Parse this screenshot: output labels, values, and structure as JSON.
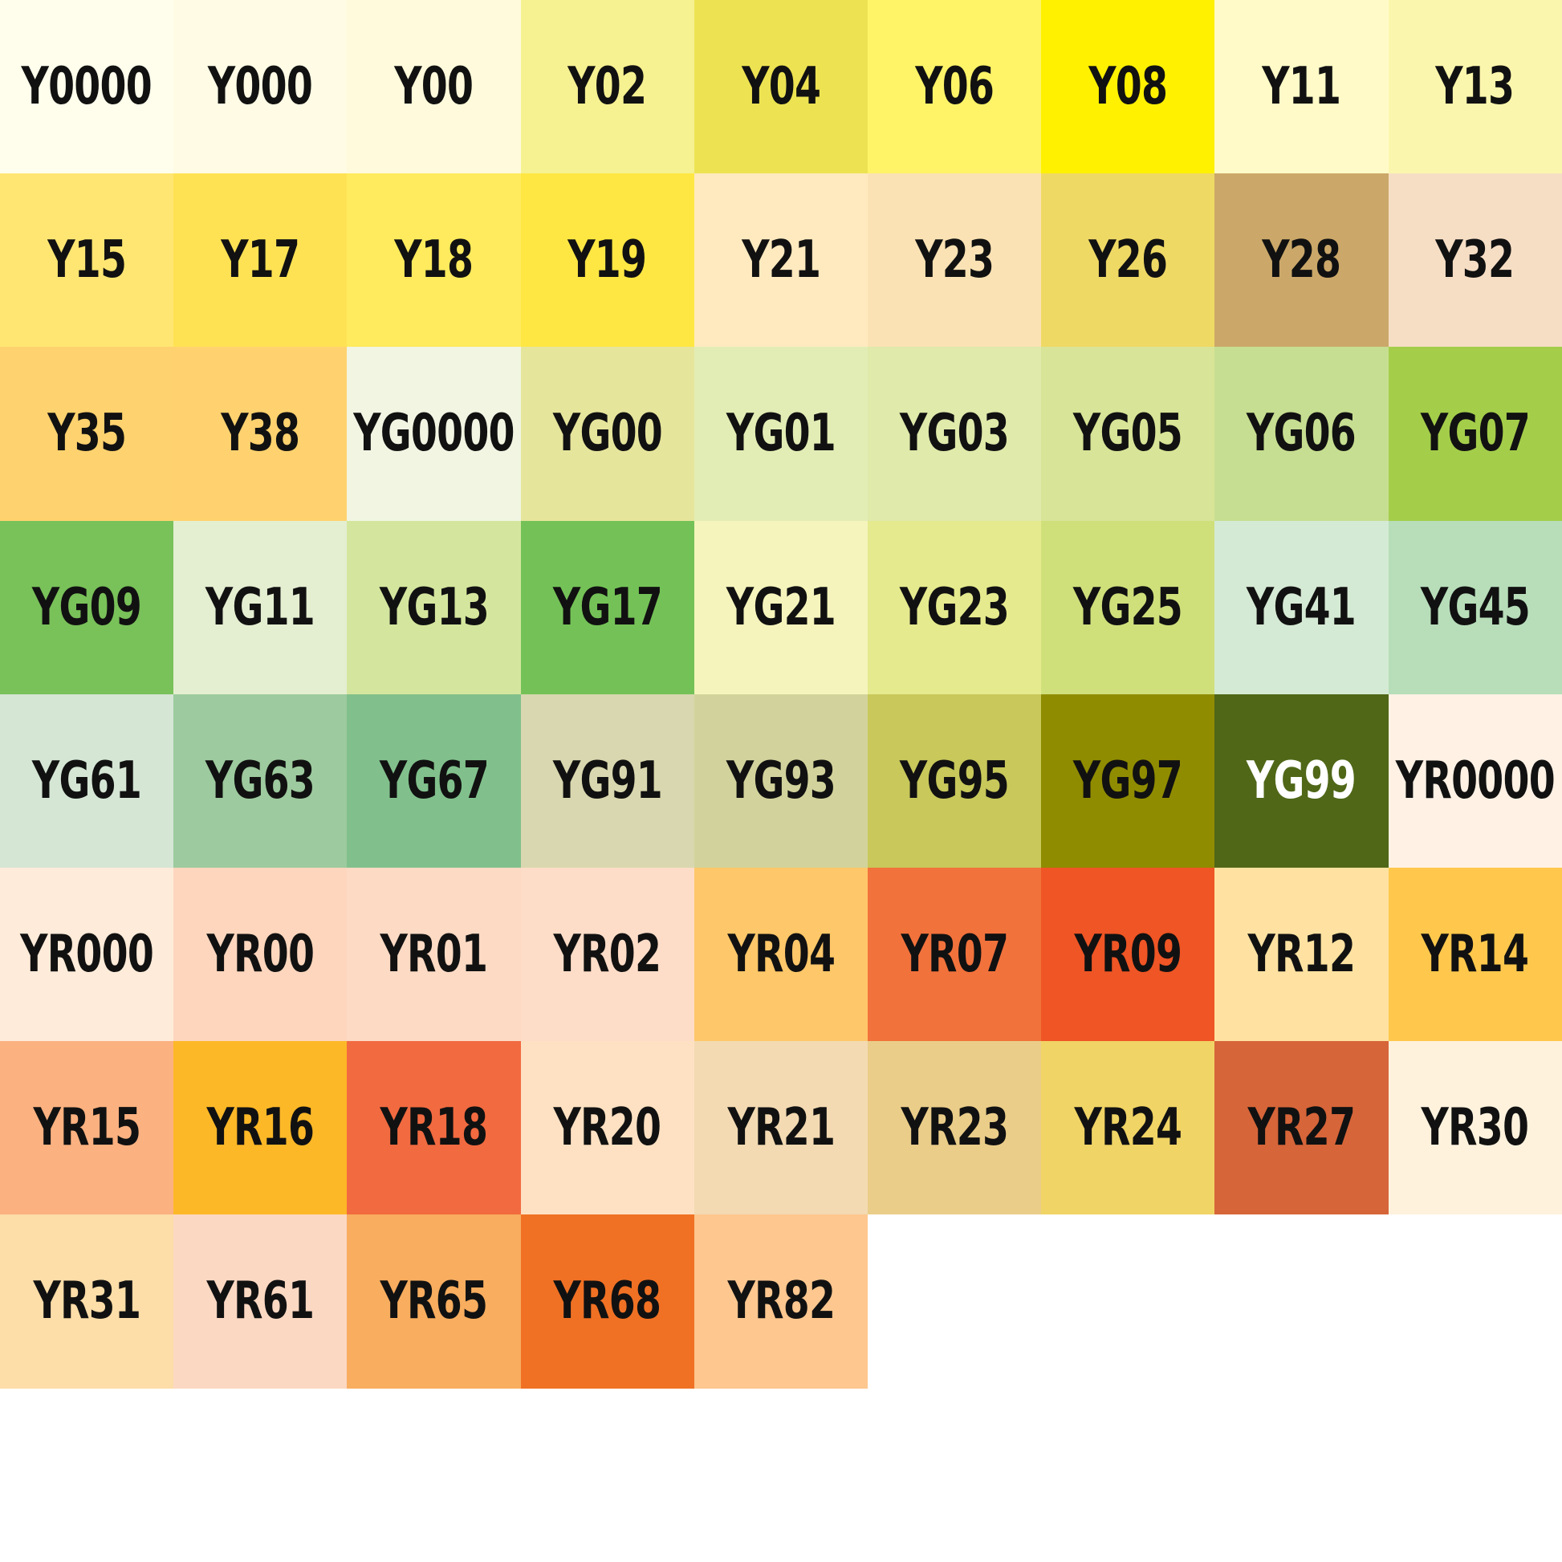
{
  "swatches": [
    {
      "code": "Y0000",
      "color": "#FFFEEC",
      "text_color": "#111111"
    },
    {
      "code": "Y000",
      "color": "#FFFBE5",
      "text_color": "#111111"
    },
    {
      "code": "Y00",
      "color": "#FFFADB",
      "text_color": "#111111"
    },
    {
      "code": "Y02",
      "color": "#F6F191",
      "text_color": "#111111"
    },
    {
      "code": "Y04",
      "color": "#EDE352",
      "text_color": "#111111"
    },
    {
      "code": "Y06",
      "color": "#FFF468",
      "text_color": "#111111"
    },
    {
      "code": "Y08",
      "color": "#FFF100",
      "text_color": "#111111"
    },
    {
      "code": "Y11",
      "color": "#FFFAC7",
      "text_color": "#111111"
    },
    {
      "code": "Y13",
      "color": "#FBF6AD",
      "text_color": "#111111"
    },
    {
      "code": "Y15",
      "color": "#FFE672",
      "text_color": "#111111"
    },
    {
      "code": "Y17",
      "color": "#FFE253",
      "text_color": "#111111"
    },
    {
      "code": "Y18",
      "color": "#FFEB5D",
      "text_color": "#111111"
    },
    {
      "code": "Y19",
      "color": "#FFE743",
      "text_color": "#111111"
    },
    {
      "code": "Y21",
      "color": "#FFEABF",
      "text_color": "#111111"
    },
    {
      "code": "Y23",
      "color": "#FAE2B4",
      "text_color": "#111111"
    },
    {
      "code": "Y26",
      "color": "#EFD965",
      "text_color": "#111111"
    },
    {
      "code": "Y28",
      "color": "#CBA869",
      "text_color": "#111111"
    },
    {
      "code": "Y32",
      "color": "#F6DEC5",
      "text_color": "#111111"
    },
    {
      "code": "Y35",
      "color": "#FED26E",
      "text_color": "#111111"
    },
    {
      "code": "Y38",
      "color": "#FFD26F",
      "text_color": "#111111"
    },
    {
      "code": "YG0000",
      "color": "#F1F5E2",
      "text_color": "#111111"
    },
    {
      "code": "YG00",
      "color": "#E6E59C",
      "text_color": "#111111"
    },
    {
      "code": "YG01",
      "color": "#E2EDB5",
      "text_color": "#111111"
    },
    {
      "code": "YG03",
      "color": "#DFEAAB",
      "text_color": "#111111"
    },
    {
      "code": "YG05",
      "color": "#D8E497",
      "text_color": "#111111"
    },
    {
      "code": "YG06",
      "color": "#C6DE91",
      "text_color": "#111111"
    },
    {
      "code": "YG07",
      "color": "#A4CE4A",
      "text_color": "#111111"
    },
    {
      "code": "YG09",
      "color": "#79C159",
      "text_color": "#111111"
    },
    {
      "code": "YG11",
      "color": "#E4EED1",
      "text_color": "#111111"
    },
    {
      "code": "YG13",
      "color": "#D4E69E",
      "text_color": "#111111"
    },
    {
      "code": "YG17",
      "color": "#74C257",
      "text_color": "#111111"
    },
    {
      "code": "YG21",
      "color": "#F5F4BC",
      "text_color": "#111111"
    },
    {
      "code": "YG23",
      "color": "#E5EA8E",
      "text_color": "#111111"
    },
    {
      "code": "YG25",
      "color": "#CFE07B",
      "text_color": "#111111"
    },
    {
      "code": "YG41",
      "color": "#D5EAD4",
      "text_color": "#111111"
    },
    {
      "code": "YG45",
      "color": "#B7DEB9",
      "text_color": "#111111"
    },
    {
      "code": "YG61",
      "color": "#D5E6D5",
      "text_color": "#111111"
    },
    {
      "code": "YG63",
      "color": "#9DCA9E",
      "text_color": "#111111"
    },
    {
      "code": "YG67",
      "color": "#81C08C",
      "text_color": "#111111"
    },
    {
      "code": "YG91",
      "color": "#D9D7AF",
      "text_color": "#111111"
    },
    {
      "code": "YG93",
      "color": "#D2D39C",
      "text_color": "#111111"
    },
    {
      "code": "YG95",
      "color": "#C8C85B",
      "text_color": "#111111"
    },
    {
      "code": "YG97",
      "color": "#908C00",
      "text_color": "#111111"
    },
    {
      "code": "YG99",
      "color": "#4F6717",
      "text_color": "#FFFFFF"
    },
    {
      "code": "YR0000",
      "color": "#FFF1E4",
      "text_color": "#111111"
    },
    {
      "code": "YR000",
      "color": "#FFEBD9",
      "text_color": "#111111"
    },
    {
      "code": "YR00",
      "color": "#FDD6BD",
      "text_color": "#111111"
    },
    {
      "code": "YR01",
      "color": "#FCDAC4",
      "text_color": "#111111"
    },
    {
      "code": "YR02",
      "color": "#FEDDC8",
      "text_color": "#111111"
    },
    {
      "code": "YR04",
      "color": "#FEC769",
      "text_color": "#111111"
    },
    {
      "code": "YR07",
      "color": "#F2723C",
      "text_color": "#111111"
    },
    {
      "code": "YR09",
      "color": "#EF5525",
      "text_color": "#111111"
    },
    {
      "code": "YR12",
      "color": "#FFE2A1",
      "text_color": "#111111"
    },
    {
      "code": "YR14",
      "color": "#FFC84C",
      "text_color": "#111111"
    },
    {
      "code": "YR15",
      "color": "#FBB180",
      "text_color": "#111111"
    },
    {
      "code": "YR16",
      "color": "#FDB827",
      "text_color": "#111111"
    },
    {
      "code": "YR18",
      "color": "#F26A40",
      "text_color": "#111111"
    },
    {
      "code": "YR20",
      "color": "#FEE1C2",
      "text_color": "#111111"
    },
    {
      "code": "YR21",
      "color": "#F3DAB2",
      "text_color": "#111111"
    },
    {
      "code": "YR23",
      "color": "#EACD89",
      "text_color": "#111111"
    },
    {
      "code": "YR24",
      "color": "#F0D465",
      "text_color": "#111111"
    },
    {
      "code": "YR27",
      "color": "#D66539",
      "text_color": "#111111"
    },
    {
      "code": "YR30",
      "color": "#FEF2DD",
      "text_color": "#111111"
    },
    {
      "code": "YR31",
      "color": "#FDDDA8",
      "text_color": "#111111"
    },
    {
      "code": "YR61",
      "color": "#FBD8C2",
      "text_color": "#111111"
    },
    {
      "code": "YR65",
      "color": "#F8AD5F",
      "text_color": "#111111"
    },
    {
      "code": "YR68",
      "color": "#F07124",
      "text_color": "#111111"
    },
    {
      "code": "YR82",
      "color": "#FDC78F",
      "text_color": "#111111"
    }
  ]
}
